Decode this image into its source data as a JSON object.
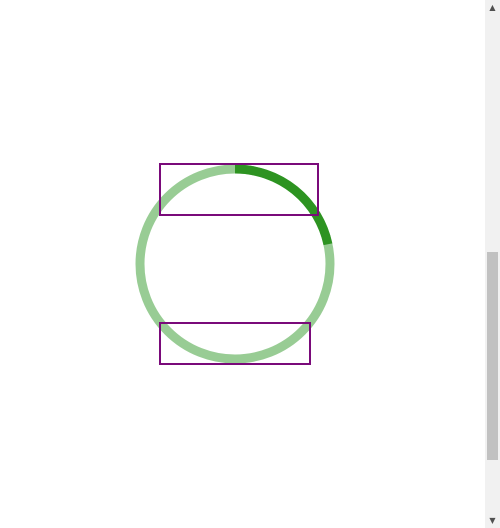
{
  "canvas": {
    "ring": {
      "name": "progress-ring",
      "track_color": "#98cc94",
      "progress_color": "#2d9321",
      "highlight_start_deg": 0,
      "highlight_end_deg": 78
    },
    "selection_boxes": [
      {
        "name": "selection-box-top",
        "stroke": "#7a0a7a"
      },
      {
        "name": "selection-box-bottom",
        "stroke": "#7a0a7a"
      }
    ]
  },
  "scrollbar": {
    "up_arrow_icon": "triangle-up-icon",
    "down_arrow_icon": "triangle-down-icon",
    "up_glyph": "▲",
    "down_glyph": "▼"
  }
}
